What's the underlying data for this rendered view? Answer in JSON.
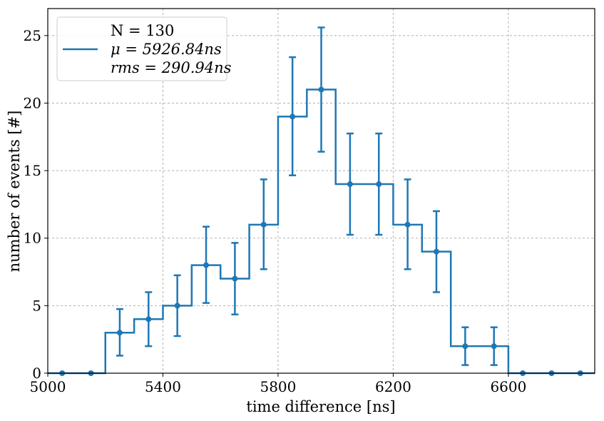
{
  "chart_data": {
    "type": "histogram",
    "title": "",
    "xlabel": "time difference [ns]",
    "ylabel": "number of events [#]",
    "xlim": [
      5000,
      6900
    ],
    "ylim": [
      0,
      27
    ],
    "xticks": [
      5000,
      5400,
      5800,
      6200,
      6600
    ],
    "yticks": [
      0,
      5,
      10,
      15,
      20,
      25
    ],
    "grid": true,
    "color": "#1f77b4",
    "bin_width": 100,
    "bins": [
      {
        "center": 5050,
        "count": 0,
        "err_low": 0,
        "err_high": 0
      },
      {
        "center": 5150,
        "count": 0,
        "err_low": 0,
        "err_high": 0
      },
      {
        "center": 5250,
        "count": 3,
        "err_low": 1.7,
        "err_high": 1.75
      },
      {
        "center": 5350,
        "count": 4,
        "err_low": 2.0,
        "err_high": 2.0
      },
      {
        "center": 5450,
        "count": 5,
        "err_low": 2.25,
        "err_high": 2.25
      },
      {
        "center": 5550,
        "count": 8,
        "err_low": 2.8,
        "err_high": 2.85
      },
      {
        "center": 5650,
        "count": 7,
        "err_low": 2.65,
        "err_high": 2.65
      },
      {
        "center": 5750,
        "count": 11,
        "err_low": 3.3,
        "err_high": 3.35
      },
      {
        "center": 5850,
        "count": 19,
        "err_low": 4.35,
        "err_high": 4.4
      },
      {
        "center": 5950,
        "count": 21,
        "err_low": 4.6,
        "err_high": 4.6
      },
      {
        "center": 6050,
        "count": 14,
        "err_low": 3.75,
        "err_high": 3.75
      },
      {
        "center": 6150,
        "count": 14,
        "err_low": 3.75,
        "err_high": 3.75
      },
      {
        "center": 6250,
        "count": 11,
        "err_low": 3.3,
        "err_high": 3.35
      },
      {
        "center": 6350,
        "count": 9,
        "err_low": 3.0,
        "err_high": 3.0
      },
      {
        "center": 6450,
        "count": 2,
        "err_low": 1.4,
        "err_high": 1.4
      },
      {
        "center": 6550,
        "count": 2,
        "err_low": 1.4,
        "err_high": 1.4
      },
      {
        "center": 6650,
        "count": 0,
        "err_low": 0,
        "err_high": 0
      },
      {
        "center": 6750,
        "count": 0,
        "err_low": 0,
        "err_high": 0
      },
      {
        "center": 6850,
        "count": 0,
        "err_low": 0,
        "err_high": 0
      }
    ],
    "legend": {
      "placement": "top-left",
      "lines": [
        "N = 130",
        "μ = 5926.84ns",
        "rms = 290.94ns"
      ]
    }
  }
}
